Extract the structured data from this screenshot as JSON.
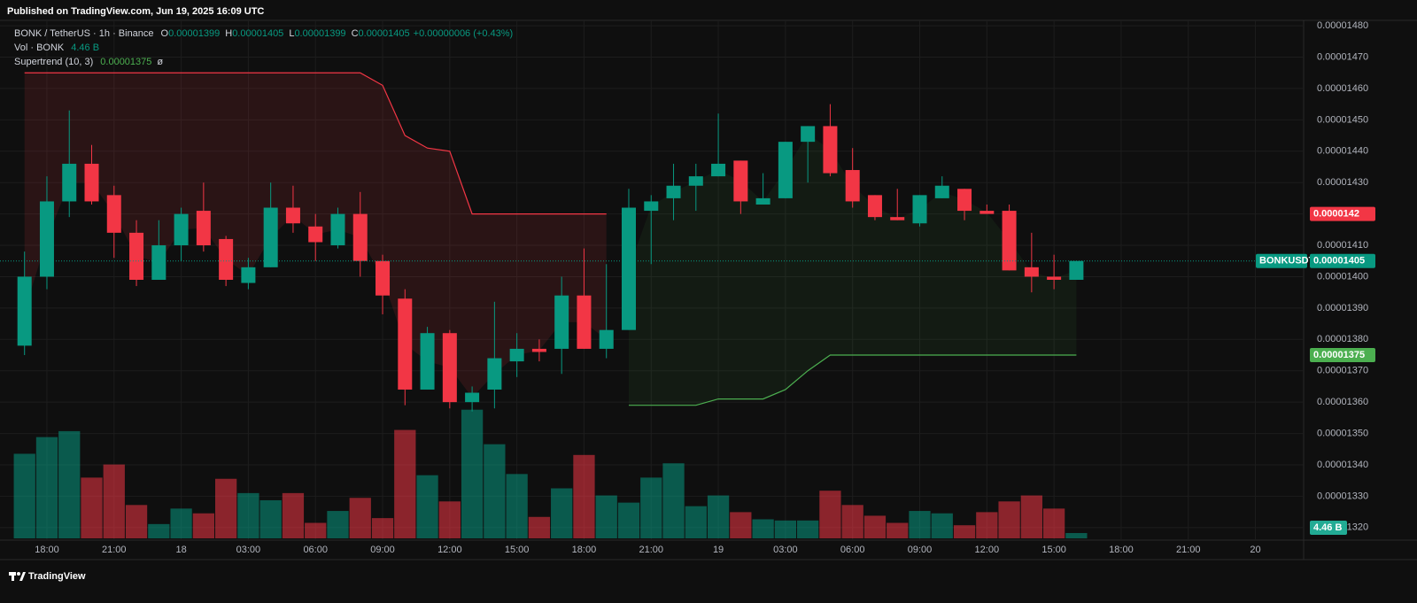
{
  "header": {
    "published": "Published on TradingView.com, Jun 19, 2025 16:09 UTC"
  },
  "footer": {
    "brand": "TradingView"
  },
  "chart_data": {
    "type": "candlestick",
    "symbol": "BONK / TetherUS · 1h · Binance",
    "ohlc_keys": [
      "O",
      "H",
      "L",
      "C"
    ],
    "change_label": "+0.00000006 (+0.43%)",
    "symbol_badge": "BONKUSDT",
    "grid": true,
    "colors": {
      "up": "#089981",
      "down": "#f23645",
      "grid": "#1d1d1d",
      "text": "#b2b5be"
    },
    "categories": [
      null,
      "18:00",
      null,
      null,
      "21:00",
      null,
      null,
      "18",
      null,
      null,
      "03:00",
      null,
      null,
      "06:00",
      null,
      null,
      "09:00",
      null,
      null,
      "12:00",
      null,
      null,
      "15:00",
      null,
      null,
      "18:00",
      null,
      null,
      "21:00",
      null,
      null,
      "19",
      null,
      null,
      "03:00",
      null,
      null,
      "06:00",
      null,
      null,
      "09:00",
      null,
      null,
      "12:00",
      null,
      null,
      "15:00",
      null,
      null,
      "18:00",
      null,
      null,
      "21:00",
      null,
      null,
      "20",
      null
    ],
    "open": [
      1.378e-05,
      1.4e-05,
      1.424e-05,
      1.436e-05,
      1.426e-05,
      1.414e-05,
      1.399e-05,
      1.41e-05,
      1.421e-05,
      1.412e-05,
      1.398e-05,
      1.403e-05,
      1.422e-05,
      1.416e-05,
      1.41e-05,
      1.42e-05,
      1.405e-05,
      1.393e-05,
      1.364e-05,
      1.382e-05,
      1.36e-05,
      1.364e-05,
      1.373e-05,
      1.377e-05,
      1.377e-05,
      1.394e-05,
      1.377e-05,
      1.383e-05,
      1.421e-05,
      1.425e-05,
      1.429e-05,
      1.432e-05,
      1.437e-05,
      1.423e-05,
      1.425e-05,
      1.443e-05,
      1.448e-05,
      1.434e-05,
      1.426e-05,
      1.419e-05,
      1.417e-05,
      1.425e-05,
      1.428e-05,
      1.421e-05,
      1.421e-05,
      1.403e-05,
      1.4e-05,
      1.399e-05,
      null,
      null,
      null,
      null,
      null,
      null,
      null,
      null,
      null
    ],
    "high": [
      1.408e-05,
      1.432e-05,
      1.453e-05,
      1.442e-05,
      1.429e-05,
      1.418e-05,
      1.418e-05,
      1.422e-05,
      1.43e-05,
      1.413e-05,
      1.406e-05,
      1.43e-05,
      1.429e-05,
      1.42e-05,
      1.422e-05,
      1.427e-05,
      1.407e-05,
      1.396e-05,
      1.384e-05,
      1.383e-05,
      1.365e-05,
      1.392e-05,
      1.382e-05,
      1.38e-05,
      1.4e-05,
      1.409e-05,
      1.404e-05,
      1.428e-05,
      1.426e-05,
      1.436e-05,
      1.436e-05,
      1.452e-05,
      1.437e-05,
      1.433e-05,
      1.443e-05,
      1.448e-05,
      1.455e-05,
      1.441e-05,
      1.426e-05,
      1.428e-05,
      1.426e-05,
      1.432e-05,
      1.428e-05,
      1.423e-05,
      1.423e-05,
      1.414e-05,
      1.407e-05,
      1.405e-05,
      null,
      null,
      null,
      null,
      null,
      null,
      null,
      null,
      null
    ],
    "low": [
      1.375e-05,
      1.396e-05,
      1.419e-05,
      1.423e-05,
      1.406e-05,
      1.397e-05,
      1.399e-05,
      1.405e-05,
      1.408e-05,
      1.397e-05,
      1.396e-05,
      1.403e-05,
      1.414e-05,
      1.405e-05,
      1.409e-05,
      1.4e-05,
      1.388e-05,
      1.359e-05,
      1.364e-05,
      1.358e-05,
      1.357e-05,
      1.358e-05,
      1.368e-05,
      1.373e-05,
      1.369e-05,
      1.377e-05,
      1.374e-05,
      1.383e-05,
      1.404e-05,
      1.418e-05,
      1.421e-05,
      1.432e-05,
      1.42e-05,
      1.423e-05,
      1.425e-05,
      1.43e-05,
      1.432e-05,
      1.422e-05,
      1.418e-05,
      1.418e-05,
      1.416e-05,
      1.425e-05,
      1.418e-05,
      1.42e-05,
      1.402e-05,
      1.395e-05,
      1.396e-05,
      1.399e-05,
      null,
      null,
      null,
      null,
      null,
      null,
      null,
      null,
      null
    ],
    "close": [
      1.4e-05,
      1.424e-05,
      1.436e-05,
      1.424e-05,
      1.414e-05,
      1.399e-05,
      1.41e-05,
      1.42e-05,
      1.41e-05,
      1.399e-05,
      1.403e-05,
      1.422e-05,
      1.417e-05,
      1.411e-05,
      1.42e-05,
      1.405e-05,
      1.394e-05,
      1.364e-05,
      1.382e-05,
      1.36e-05,
      1.363e-05,
      1.374e-05,
      1.377e-05,
      1.376e-05,
      1.394e-05,
      1.377e-05,
      1.383e-05,
      1.422e-05,
      1.424e-05,
      1.429e-05,
      1.432e-05,
      1.436e-05,
      1.424e-05,
      1.425e-05,
      1.443e-05,
      1.448e-05,
      1.433e-05,
      1.424e-05,
      1.419e-05,
      1.418e-05,
      1.426e-05,
      1.429e-05,
      1.421e-05,
      1.42e-05,
      1.402e-05,
      1.4e-05,
      1.399e-05,
      1.405e-05,
      null,
      null,
      null,
      null,
      null,
      null,
      null,
      null,
      null
    ],
    "volume": {
      "name": "Vol · BONK",
      "vlim": [
        0,
        110
      ],
      "values": [
        71,
        85,
        90,
        51,
        62,
        28,
        12,
        25,
        21,
        50,
        38,
        32,
        38,
        13,
        23,
        34,
        17,
        91,
        53,
        31,
        108,
        79,
        54,
        18,
        42,
        70,
        36,
        30,
        51,
        63,
        27,
        36,
        22,
        16,
        15,
        15,
        40,
        28,
        19,
        13,
        23,
        21,
        11,
        22,
        31,
        36,
        25,
        4.46,
        null,
        null,
        null,
        null,
        null,
        null,
        null,
        null,
        null
      ],
      "value_labels": [
        null,
        null,
        null,
        null,
        null,
        null,
        null,
        null,
        null,
        null,
        null,
        null,
        null,
        null,
        null,
        null,
        null,
        null,
        null,
        null,
        null,
        null,
        null,
        null,
        null,
        null,
        null,
        null,
        null,
        null,
        null,
        null,
        null,
        null,
        null,
        null,
        null,
        null,
        null,
        null,
        null,
        null,
        null,
        null,
        null,
        null,
        null,
        "4.46 B",
        null,
        null,
        null,
        null,
        null,
        null,
        null,
        null,
        null
      ]
    },
    "supertrend": {
      "name": "Supertrend (10, 3)",
      "symbol": "ø",
      "down": {
        "color": "#f23645",
        "values": [
          1.465e-05,
          1.465e-05,
          1.465e-05,
          1.465e-05,
          1.465e-05,
          1.465e-05,
          1.465e-05,
          1.465e-05,
          1.465e-05,
          1.465e-05,
          1.465e-05,
          1.465e-05,
          1.465e-05,
          1.465e-05,
          1.465e-05,
          1.465e-05,
          1.461e-05,
          1.445e-05,
          1.441e-05,
          1.44e-05,
          1.42e-05,
          1.42e-05,
          1.42e-05,
          1.42e-05,
          1.42e-05,
          1.42e-05,
          1.42e-05,
          null,
          null,
          null,
          null,
          null,
          null,
          null,
          null,
          null,
          null,
          null,
          null,
          null,
          null,
          null,
          null,
          null,
          null,
          null,
          null,
          null,
          null,
          null,
          null,
          null,
          null,
          null,
          null,
          null,
          null
        ]
      },
      "up": {
        "color": "#4caf50",
        "values": [
          null,
          null,
          null,
          null,
          null,
          null,
          null,
          null,
          null,
          null,
          null,
          null,
          null,
          null,
          null,
          null,
          null,
          null,
          null,
          null,
          null,
          null,
          null,
          null,
          null,
          null,
          null,
          1.359e-05,
          1.359e-05,
          1.359e-05,
          1.359e-05,
          1.361e-05,
          1.361e-05,
          1.361e-05,
          1.364e-05,
          1.37e-05,
          1.375e-05,
          1.375e-05,
          1.375e-05,
          1.375e-05,
          1.375e-05,
          1.375e-05,
          1.375e-05,
          1.375e-05,
          1.375e-05,
          1.375e-05,
          1.375e-05,
          1.375e-05,
          null,
          null,
          null,
          null,
          null,
          null,
          null,
          null,
          null
        ]
      }
    },
    "ylim": [
      1.316e-05,
      1.482e-05
    ],
    "yticks": [
      {
        "value": 1.32e-05,
        "label": "0.00001320"
      },
      {
        "value": 1.33e-05,
        "label": "0.00001330"
      },
      {
        "value": 1.34e-05,
        "label": "0.00001340"
      },
      {
        "value": 1.35e-05,
        "label": "0.00001350"
      },
      {
        "value": 1.36e-05,
        "label": "0.00001360"
      },
      {
        "value": 1.37e-05,
        "label": "0.00001370"
      },
      {
        "value": 1.38e-05,
        "label": "0.00001380"
      },
      {
        "value": 1.39e-05,
        "label": "0.00001390"
      },
      {
        "value": 1.4e-05,
        "label": "0.00001400"
      },
      {
        "value": 1.41e-05,
        "label": "0.00001410"
      },
      {
        "value": 1.42e-05,
        "label": "0.00001420"
      },
      {
        "value": 1.43e-05,
        "label": "0.00001430"
      },
      {
        "value": 1.44e-05,
        "label": "0.00001440"
      },
      {
        "value": 1.45e-05,
        "label": "0.00001450"
      },
      {
        "value": 1.46e-05,
        "label": "0.00001460"
      },
      {
        "value": 1.47e-05,
        "label": "0.00001470"
      },
      {
        "value": 1.48e-05,
        "label": "0.00001480"
      }
    ]
  }
}
